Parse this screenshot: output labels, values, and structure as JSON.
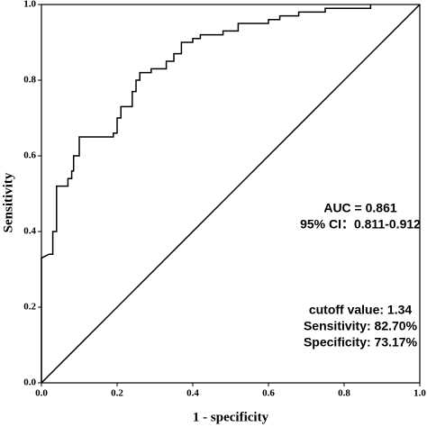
{
  "chart_data": {
    "type": "line",
    "xlabel": "1 - specificity",
    "ylabel": "Sensitivity",
    "xlim": [
      0,
      1
    ],
    "ylim": [
      0,
      1
    ],
    "xticks": [
      {
        "value": 0,
        "label": "0.0"
      },
      0.2,
      0.4,
      0.6,
      0.8,
      {
        "value": 1,
        "label": "1.0"
      }
    ],
    "yticks": [
      {
        "value": 0,
        "label": "0.0"
      },
      0.2,
      0.4,
      0.6,
      0.8,
      {
        "value": 1,
        "label": "1.0"
      }
    ],
    "series": [
      {
        "color": "#000000",
        "x": [
          0,
          0,
          0.02,
          0.02,
          0.03,
          0.03,
          0.04,
          0.04,
          0.07,
          0.07,
          0.08,
          0.08,
          0.085,
          0.085,
          0.1,
          0.1,
          0.17,
          0.17,
          0.19,
          0.19,
          0.2,
          0.2,
          0.21,
          0.21,
          0.24,
          0.24,
          0.25,
          0.25,
          0.26,
          0.26,
          0.29,
          0.29,
          0.33,
          0.33,
          0.35,
          0.35,
          0.37,
          0.37,
          0.4,
          0.4,
          0.42,
          0.42,
          0.47,
          0.47,
          0.48,
          0.48,
          0.52,
          0.52,
          0.6,
          0.6,
          0.63,
          0.63,
          0.68,
          0.68,
          0.75,
          0.75,
          0.87,
          0.87
        ],
        "values": [
          0,
          0.33,
          0.34,
          0.34,
          0.34,
          0.4,
          0.4,
          0.52,
          0.52,
          0.54,
          0.54,
          0.56,
          0.56,
          0.6,
          0.6,
          0.65,
          0.65,
          0.65,
          0.65,
          0.66,
          0.66,
          0.7,
          0.7,
          0.73,
          0.73,
          0.77,
          0.77,
          0.8,
          0.8,
          0.82,
          0.82,
          0.83,
          0.83,
          0.85,
          0.85,
          0.87,
          0.87,
          0.9,
          0.9,
          0.91,
          0.91,
          0.92,
          0.92,
          0.92,
          0.92,
          0.93,
          0.93,
          0.95,
          0.95,
          0.96,
          0.96,
          0.97,
          0.97,
          0.98,
          0.98,
          0.99,
          0.99,
          1
        ]
      },
      {
        "color": "#000000",
        "x": [
          0,
          1
        ],
        "values": [
          0,
          1
        ]
      }
    ],
    "annotations": [
      "AUC = 0.861",
      "95% CI：0.811-0.912",
      "cutoff value: 1.34",
      "Sensitivity: 82.70%",
      "Specificity: 73.17%"
    ]
  }
}
